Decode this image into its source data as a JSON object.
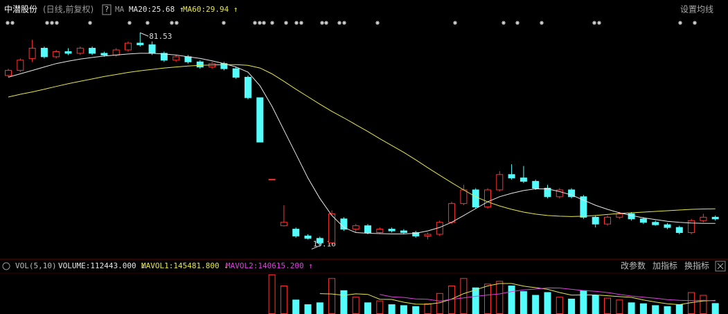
{
  "chart_data": [
    {
      "type": "candlestick",
      "title": "中潜股份",
      "subtitle": "(日线,前复权)",
      "help": "?",
      "indicator": "MA",
      "settings": "设置均线",
      "up_color": "#ff3232",
      "down_color": "#54fcfc",
      "ylim": [
        16,
        83
      ],
      "candles": [
        [
          69,
          71,
          68.5,
          70.5
        ],
        [
          70.5,
          74,
          70,
          73.5
        ],
        [
          74,
          79.5,
          73,
          77
        ],
        [
          77,
          77.5,
          74,
          74.5
        ],
        [
          74.5,
          76.5,
          74,
          76
        ],
        [
          76,
          77,
          75,
          75.5
        ],
        [
          75.5,
          77.5,
          75,
          77
        ],
        [
          77,
          77.5,
          75,
          75.5
        ],
        [
          75.5,
          76,
          74.5,
          75
        ],
        [
          75,
          77,
          74.5,
          76.5
        ],
        [
          76.5,
          79,
          76,
          78.5
        ],
        [
          78.5,
          81.53,
          77.5,
          78
        ],
        [
          78,
          79,
          75,
          75.5
        ],
        [
          75.5,
          76,
          73,
          73.5
        ],
        [
          73.5,
          75,
          73,
          74.5
        ],
        [
          74.5,
          75,
          72.5,
          73
        ],
        [
          73,
          73.5,
          71,
          71.5
        ],
        [
          71.5,
          73,
          71,
          72.5
        ],
        [
          72.5,
          73,
          70.5,
          71
        ],
        [
          71,
          71.5,
          68,
          68.5
        ],
        [
          68.5,
          69,
          62,
          62.5
        ],
        [
          62.5,
          62.5,
          49.5,
          49.5
        ],
        [
          38.6,
          38.6,
          38.6,
          38.6
        ],
        [
          25,
          31,
          24.8,
          26
        ],
        [
          24,
          24.5,
          21.5,
          22
        ],
        [
          22,
          22.5,
          21,
          21.3
        ],
        [
          21.3,
          21.8,
          19.16,
          20
        ],
        [
          20,
          29.5,
          19.8,
          28.5
        ],
        [
          27,
          27.5,
          23.5,
          24
        ],
        [
          24,
          25.5,
          23,
          25
        ],
        [
          25,
          25.5,
          22.5,
          23
        ],
        [
          23,
          24.5,
          22.8,
          24
        ],
        [
          24,
          24.5,
          23,
          23.5
        ],
        [
          23.5,
          24,
          22.5,
          23
        ],
        [
          23,
          23.5,
          21.5,
          22
        ],
        [
          22,
          23,
          21,
          22.5
        ],
        [
          22.5,
          26.5,
          22,
          26
        ],
        [
          26,
          32,
          25.5,
          31.5
        ],
        [
          31.5,
          37,
          31,
          35.5
        ],
        [
          35.5,
          36,
          30,
          30.5
        ],
        [
          30.5,
          36,
          30,
          35.5
        ],
        [
          35.5,
          41,
          35,
          40
        ],
        [
          40,
          43,
          38.5,
          39
        ],
        [
          39,
          42.5,
          37.5,
          38
        ],
        [
          38,
          38.5,
          35.5,
          36
        ],
        [
          36,
          37,
          33,
          33.5
        ],
        [
          33.5,
          36,
          33,
          35.5
        ],
        [
          35.5,
          36,
          33,
          33.5
        ],
        [
          33.5,
          34,
          27,
          27.5
        ],
        [
          27.5,
          28,
          24.5,
          25.5
        ],
        [
          25.5,
          28,
          25,
          27.5
        ],
        [
          27.5,
          29,
          27,
          28.5
        ],
        [
          28.5,
          29,
          26.5,
          27
        ],
        [
          27,
          27.5,
          25.5,
          26
        ],
        [
          26,
          26.5,
          25,
          25.3
        ],
        [
          25.3,
          25.8,
          24,
          24.5
        ],
        [
          24.5,
          25,
          22.5,
          23
        ],
        [
          23,
          27,
          22.5,
          26.5
        ],
        [
          26.5,
          28.5,
          26,
          27.5
        ],
        [
          27.5,
          28,
          26.5,
          27
        ]
      ],
      "series": [
        {
          "name": "MA20:25.68 ↑",
          "color": "#e8e8e8",
          "values": [
            68.5,
            69.5,
            70.5,
            71.5,
            72.5,
            73.2,
            73.8,
            74.3,
            74.7,
            75,
            75.3,
            75.5,
            75.5,
            75.3,
            75,
            74.5,
            74,
            73.3,
            72.5,
            71.5,
            70,
            66,
            60,
            53,
            46,
            39,
            33,
            28,
            24.5,
            23,
            22.8,
            22.7,
            22.6,
            22.6,
            22.8,
            23.5,
            24.5,
            26,
            28,
            30,
            32,
            33.5,
            34.5,
            35.3,
            35.8,
            35.8,
            35,
            34,
            32.5,
            31,
            29.8,
            28.8,
            28,
            27.3,
            26.8,
            26.3,
            26,
            25.8,
            25.7,
            25.68
          ]
        },
        {
          "name": "MA60:29.94 ↑",
          "color": "#e8e84c",
          "values": [
            62.7,
            63.5,
            64.2,
            65,
            65.8,
            66.6,
            67.3,
            68,
            68.7,
            69.3,
            69.9,
            70.4,
            70.8,
            71.2,
            71.5,
            71.8,
            72,
            72.1,
            72.2,
            72.2,
            72,
            71.2,
            69.5,
            67.3,
            65,
            62.8,
            60.6,
            58.5,
            56.6,
            54.6,
            52.6,
            50.5,
            48.5,
            46.5,
            44.3,
            42,
            39.8,
            37.6,
            35.5,
            33.5,
            32,
            30.8,
            29.8,
            29,
            28.4,
            28,
            27.8,
            27.7,
            27.8,
            28,
            28.3,
            28.6,
            28.8,
            29,
            29.2,
            29.4,
            29.6,
            29.8,
            29.9,
            29.94
          ]
        }
      ]
    },
    {
      "type": "bar",
      "title": "VOL(5,10)",
      "buttons": [
        "改参数",
        "加指标",
        "换指标"
      ],
      "ylim": [
        0,
        430000
      ],
      "series": [
        {
          "name": "VOLUME:112443.000 ↓",
          "values": [
            null,
            null,
            null,
            null,
            null,
            null,
            null,
            null,
            null,
            null,
            null,
            null,
            null,
            null,
            null,
            null,
            null,
            null,
            null,
            null,
            null,
            null,
            420000,
            300000,
            150000,
            100000,
            120000,
            380000,
            250000,
            180000,
            120000,
            140000,
            100000,
            90000,
            80000,
            110000,
            220000,
            300000,
            380000,
            280000,
            320000,
            350000,
            300000,
            240000,
            200000,
            230000,
            180000,
            160000,
            250000,
            200000,
            170000,
            150000,
            120000,
            110000,
            90000,
            80000,
            100000,
            230000,
            200000,
            112443
          ]
        },
        {
          "name": "MAVOL1:145481.800 ↓",
          "color": "#e8e84c",
          "values": [
            null,
            null,
            null,
            null,
            null,
            null,
            null,
            null,
            null,
            null,
            null,
            null,
            null,
            null,
            null,
            null,
            null,
            null,
            null,
            null,
            null,
            null,
            null,
            null,
            null,
            null,
            218000,
            214000,
            200000,
            216000,
            210000,
            158000,
            156000,
            126000,
            106000,
            104000,
            120000,
            160000,
            218000,
            258000,
            300000,
            326000,
            326000,
            298000,
            282000,
            264000,
            230000,
            202000,
            204000,
            204000,
            196000,
            186000,
            178000,
            150000,
            128000,
            110000,
            100000,
            122000,
            140000,
            145481.8
          ]
        },
        {
          "name": "MAVOL2:140615.200 ↑",
          "color": "#e040e0",
          "values": [
            null,
            null,
            null,
            null,
            null,
            null,
            null,
            null,
            null,
            null,
            null,
            null,
            null,
            null,
            null,
            null,
            null,
            null,
            null,
            null,
            null,
            null,
            null,
            null,
            null,
            null,
            null,
            null,
            null,
            null,
            null,
            210000,
            184000,
            177000,
            161000,
            157000,
            138000,
            158000,
            172000,
            189000,
            203000,
            215000,
            240000,
            258000,
            267000,
            279000,
            278000,
            264000,
            251000,
            243000,
            230000,
            210000,
            192000,
            180000,
            169000,
            154000,
            146000,
            143000,
            147000,
            140615.2
          ]
        }
      ]
    }
  ]
}
